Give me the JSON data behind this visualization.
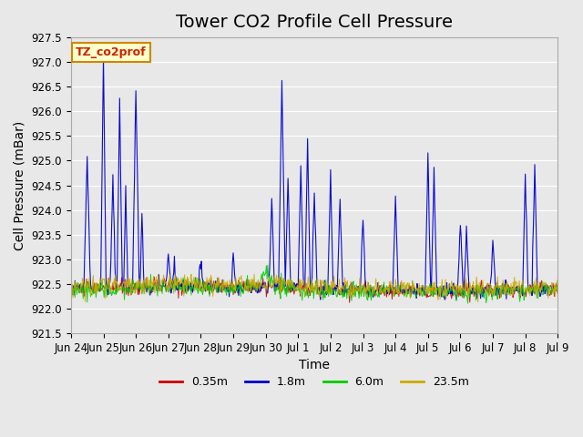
{
  "title": "Tower CO2 Profile Cell Pressure",
  "ylabel": "Cell Pressure (mBar)",
  "xlabel": "Time",
  "ylim": [
    921.5,
    927.5
  ],
  "yticks": [
    921.5,
    922.0,
    922.5,
    923.0,
    923.5,
    924.0,
    924.5,
    925.0,
    925.5,
    926.0,
    926.5,
    927.0,
    927.5
  ],
  "xtick_labels": [
    "Jun 24",
    "Jun 25",
    "Jun 26",
    "Jun 27",
    "Jun 28",
    "Jun 29",
    "Jun 30",
    "Jul 1",
    "Jul 2",
    "Jul 3",
    "Jul 4",
    "Jul 5",
    "Jul 6",
    "Jul 7",
    "Jul 8",
    "Jul 9"
  ],
  "legend_labels": [
    "0.35m",
    "1.8m",
    "6.0m",
    "23.5m"
  ],
  "legend_colors": [
    "#cc0000",
    "#0000cc",
    "#00cc00",
    "#ccaa00"
  ],
  "background_color": "#e8e8e8",
  "plot_bg_color": "#e8e8e8",
  "annotation_text": "TZ_co2prof",
  "annotation_color": "#cc2200",
  "annotation_bg": "#ffffcc",
  "annotation_border": "#cc8800",
  "title_fontsize": 14,
  "axis_fontsize": 10,
  "tick_fontsize": 8.5
}
